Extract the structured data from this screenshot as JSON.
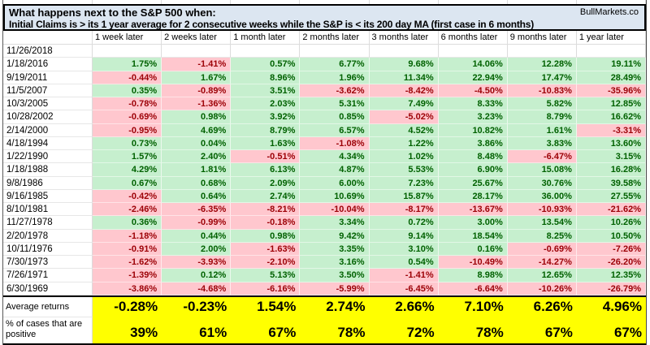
{
  "header": {
    "title_line1": "What happens next to the S&P 500 when:",
    "title_line2": "Initial Claims is > its 1 year average for 2 consecutive weeks while the S&P is < its 200 day MA (first case in 6 months)",
    "brand": "BullMarkets.co"
  },
  "colors": {
    "title_bg": "#dce6f1",
    "positive_bg": "#c6efce",
    "positive_text": "#006100",
    "negative_bg": "#ffc7ce",
    "negative_text": "#9c0006",
    "summary_bg": "#ffff00"
  },
  "chart_data": {
    "type": "table",
    "title": "What happens next to the S&P 500 when: Initial Claims is > its 1 year average for 2 consecutive weeks while the S&P is < its 200 day MA (first case in 6 months)",
    "columns": [
      "1 week later",
      "2 weeks later",
      "1 month later",
      "2 months later",
      "3 months later",
      "6 months later",
      "9 months later",
      "1 year later"
    ],
    "rows": [
      {
        "date": "11/26/2018",
        "values": [
          "",
          "",
          "",
          "",
          "",
          "",
          "",
          ""
        ]
      },
      {
        "date": "1/18/2016",
        "values": [
          "1.75%",
          "-1.41%",
          "0.57%",
          "6.77%",
          "9.68%",
          "14.06%",
          "12.28%",
          "19.11%"
        ]
      },
      {
        "date": "9/19/2011",
        "values": [
          "-0.44%",
          "1.67%",
          "8.96%",
          "1.96%",
          "11.34%",
          "22.94%",
          "17.47%",
          "28.49%"
        ]
      },
      {
        "date": "11/5/2007",
        "values": [
          "0.35%",
          "-0.89%",
          "3.51%",
          "-3.62%",
          "-8.42%",
          "-4.50%",
          "-10.83%",
          "-35.96%"
        ]
      },
      {
        "date": "10/3/2005",
        "values": [
          "-0.78%",
          "-1.36%",
          "2.03%",
          "5.31%",
          "7.49%",
          "8.33%",
          "5.82%",
          "12.85%"
        ]
      },
      {
        "date": "10/28/2002",
        "values": [
          "-0.69%",
          "0.98%",
          "3.92%",
          "0.85%",
          "-5.02%",
          "3.23%",
          "8.79%",
          "16.62%"
        ]
      },
      {
        "date": "2/14/2000",
        "values": [
          "-0.95%",
          "4.69%",
          "8.79%",
          "6.57%",
          "4.52%",
          "10.82%",
          "1.61%",
          "-3.31%"
        ]
      },
      {
        "date": "4/18/1994",
        "values": [
          "0.73%",
          "0.04%",
          "1.63%",
          "-1.08%",
          "1.22%",
          "3.86%",
          "3.83%",
          "13.60%"
        ]
      },
      {
        "date": "1/22/1990",
        "values": [
          "1.57%",
          "2.40%",
          "-0.51%",
          "4.34%",
          "1.02%",
          "8.48%",
          "-6.47%",
          "3.15%"
        ]
      },
      {
        "date": "1/18/1988",
        "values": [
          "4.29%",
          "1.81%",
          "6.13%",
          "4.87%",
          "5.53%",
          "6.90%",
          "15.08%",
          "16.28%"
        ]
      },
      {
        "date": "9/8/1986",
        "values": [
          "0.67%",
          "0.68%",
          "2.09%",
          "6.00%",
          "7.23%",
          "25.67%",
          "30.76%",
          "39.58%"
        ]
      },
      {
        "date": "9/16/1985",
        "values": [
          "-0.42%",
          "0.64%",
          "2.74%",
          "10.69%",
          "15.87%",
          "28.17%",
          "36.00%",
          "27.55%"
        ]
      },
      {
        "date": "8/10/1981",
        "values": [
          "-2.46%",
          "-6.35%",
          "-8.21%",
          "-10.04%",
          "-8.17%",
          "-13.67%",
          "-10.93%",
          "-21.62%"
        ]
      },
      {
        "date": "11/27/1978",
        "values": [
          "0.36%",
          "-0.99%",
          "-0.18%",
          "3.34%",
          "0.72%",
          "3.00%",
          "13.54%",
          "10.26%"
        ]
      },
      {
        "date": "2/20/1978",
        "values": [
          "-1.18%",
          "0.44%",
          "0.98%",
          "9.42%",
          "9.14%",
          "18.54%",
          "8.25%",
          "10.50%"
        ]
      },
      {
        "date": "10/11/1976",
        "values": [
          "-0.91%",
          "2.00%",
          "-1.63%",
          "3.35%",
          "3.10%",
          "0.16%",
          "-0.69%",
          "-7.26%"
        ]
      },
      {
        "date": "7/30/1973",
        "values": [
          "-1.62%",
          "-3.93%",
          "-2.10%",
          "3.16%",
          "0.54%",
          "-10.49%",
          "-14.27%",
          "-26.20%"
        ]
      },
      {
        "date": "7/26/1971",
        "values": [
          "-1.39%",
          "0.12%",
          "5.13%",
          "3.50%",
          "-1.41%",
          "8.98%",
          "12.65%",
          "12.35%"
        ]
      },
      {
        "date": "6/30/1969",
        "values": [
          "-3.86%",
          "-4.68%",
          "-6.16%",
          "-5.99%",
          "-6.45%",
          "-6.64%",
          "-10.26%",
          "-26.79%"
        ]
      }
    ],
    "summary_rows": [
      {
        "label": "Average returns",
        "values": [
          "-0.28%",
          "-0.23%",
          "1.54%",
          "2.74%",
          "2.66%",
          "7.10%",
          "6.26%",
          "4.96%"
        ]
      },
      {
        "label": "% of cases that are positive",
        "values": [
          "39%",
          "61%",
          "67%",
          "78%",
          "72%",
          "78%",
          "67%",
          "67%"
        ]
      }
    ]
  }
}
